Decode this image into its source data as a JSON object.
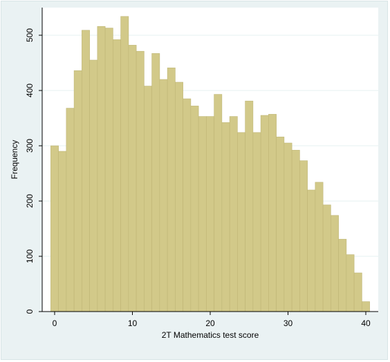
{
  "colors": {
    "outer_background": "#eaf2f3",
    "plot_background": "#ffffff",
    "bar_fill": "#d2c989",
    "bar_edge": "#bfb676",
    "gridline": "#e6f0f2",
    "axis": "#000000"
  },
  "chart_data": {
    "type": "bar",
    "title": "",
    "xlabel": "2T Mathematics test score",
    "ylabel": "Frequency",
    "xlim": [
      -1.6,
      41.6
    ],
    "ylim": [
      0,
      550
    ],
    "xticks": [
      0,
      10,
      20,
      30,
      40
    ],
    "yticks": [
      0,
      100,
      200,
      300,
      400,
      500
    ],
    "grid": true,
    "bin_width": 1,
    "x": [
      0,
      1,
      2,
      3,
      4,
      5,
      6,
      7,
      8,
      9,
      10,
      11,
      12,
      13,
      14,
      15,
      16,
      17,
      18,
      19,
      20,
      21,
      22,
      23,
      24,
      25,
      26,
      27,
      28,
      29,
      30,
      31,
      32,
      33,
      34,
      35,
      36,
      37,
      38,
      39,
      40
    ],
    "values": [
      300,
      290,
      368,
      436,
      509,
      455,
      516,
      513,
      492,
      534,
      482,
      471,
      408,
      467,
      420,
      441,
      415,
      385,
      372,
      353,
      353,
      393,
      342,
      353,
      324,
      381,
      324,
      355,
      357,
      316,
      305,
      292,
      273,
      220,
      234,
      193,
      174,
      131,
      103,
      70,
      18
    ]
  }
}
